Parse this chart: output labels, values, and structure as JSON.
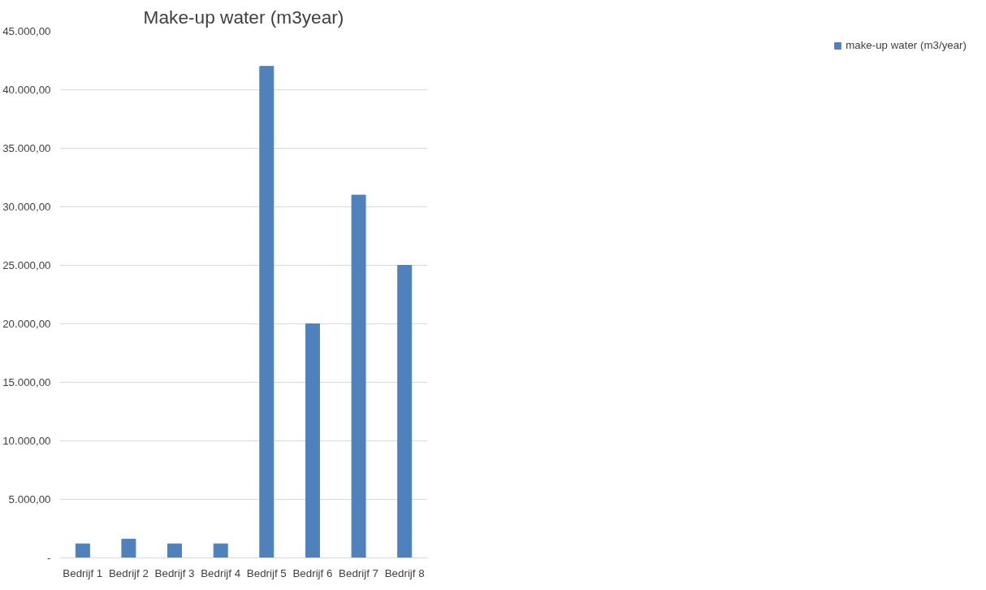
{
  "chart_data": {
    "type": "bar",
    "title": "Make-up water (m3year)",
    "categories": [
      "Bedrijf 1",
      "Bedrijf 2",
      "Bedrijf 3",
      "Bedrijf 4",
      "Bedrijf 5",
      "Bedrijf 6",
      "Bedrijf 7",
      "Bedrijf 8"
    ],
    "series": [
      {
        "name": "make-up water (m3/year)",
        "color": "#4f81bd",
        "values": [
          1200,
          1600,
          1200,
          1200,
          42000,
          20000,
          31000,
          25000
        ]
      }
    ],
    "ylim": [
      0,
      45000
    ],
    "yticks": [
      {
        "value": 0,
        "label": "-"
      },
      {
        "value": 5000,
        "label": "5.000,00"
      },
      {
        "value": 10000,
        "label": "10.000,00"
      },
      {
        "value": 15000,
        "label": "15.000,00"
      },
      {
        "value": 20000,
        "label": "20.000,00"
      },
      {
        "value": 25000,
        "label": "25.000,00"
      },
      {
        "value": 30000,
        "label": "30.000,00"
      },
      {
        "value": 35000,
        "label": "35.000,00"
      },
      {
        "value": 40000,
        "label": "40.000,00"
      },
      {
        "value": 45000,
        "label": "45.000,00"
      }
    ],
    "grid": "y",
    "legend": "right"
  }
}
